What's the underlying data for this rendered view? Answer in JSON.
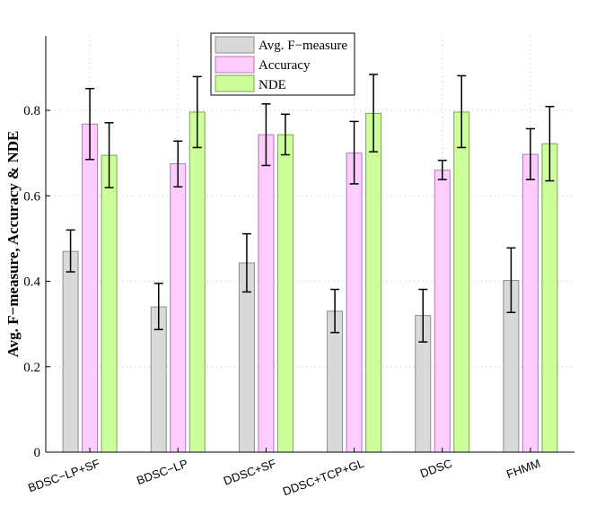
{
  "chart_data": {
    "type": "bar",
    "title": "",
    "xlabel": "",
    "ylabel": "Avg. F−measure, Accuracy & NDE",
    "ylim": [
      0,
      0.98
    ],
    "yticks": [
      "0",
      "0.2",
      "0.4",
      "0.6",
      "0.8"
    ],
    "ytick_values": [
      0,
      0.2,
      0.4,
      0.6,
      0.8
    ],
    "grid": true,
    "legend_position": "top-center",
    "categories": [
      "BDSC−LP+SF",
      "BDSC−LP",
      "DDSC+SF",
      "DDSC+TCP+GL",
      "DDSC",
      "FHMM"
    ],
    "series": [
      {
        "name": "Avg. F−measure",
        "color": "#d9d9d9",
        "edge": "#8c8c8c",
        "values": [
          0.47,
          0.34,
          0.443,
          0.33,
          0.32,
          0.402
        ],
        "err_low": [
          0.422,
          0.287,
          0.375,
          0.28,
          0.258,
          0.327
        ],
        "err_high": [
          0.52,
          0.395,
          0.511,
          0.381,
          0.381,
          0.478
        ]
      },
      {
        "name": "Accuracy",
        "color": "#ffccff",
        "edge": "#b07ab0",
        "values": [
          0.768,
          0.675,
          0.743,
          0.7,
          0.66,
          0.697
        ],
        "err_low": [
          0.685,
          0.621,
          0.671,
          0.628,
          0.638,
          0.638
        ],
        "err_high": [
          0.851,
          0.728,
          0.815,
          0.774,
          0.683,
          0.757
        ]
      },
      {
        "name": "NDE",
        "color": "#ccff99",
        "edge": "#7fa05a",
        "values": [
          0.695,
          0.796,
          0.743,
          0.793,
          0.796,
          0.722
        ],
        "err_low": [
          0.619,
          0.713,
          0.696,
          0.703,
          0.713,
          0.635
        ],
        "err_high": [
          0.771,
          0.879,
          0.791,
          0.884,
          0.881,
          0.809
        ]
      }
    ]
  }
}
